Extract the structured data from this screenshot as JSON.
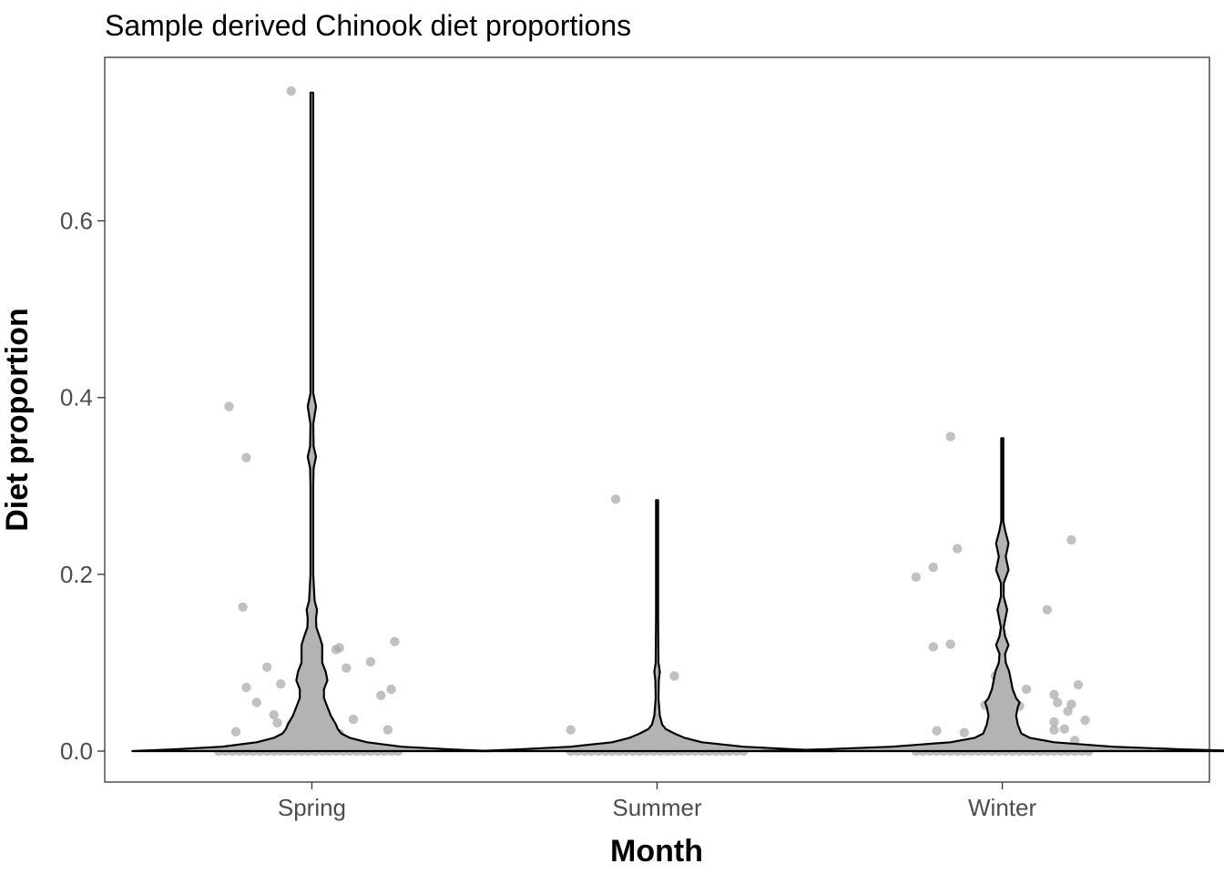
{
  "chart_data": {
    "type": "violin",
    "title": "Sample derived Chinook diet proportions",
    "xlabel": "Month",
    "ylabel": "Diet proportion",
    "categories": [
      "Spring",
      "Summer",
      "Winter"
    ],
    "y_ticks": [
      0.0,
      0.2,
      0.4,
      0.6
    ],
    "y_tick_labels": [
      "0.0",
      "0.2",
      "0.4",
      "0.6"
    ],
    "ylim": [
      -0.035,
      0.785
    ],
    "grid": false,
    "legend": "none",
    "colors": {
      "violin_fill": "#b3b3b3",
      "violin_stroke": "#000000",
      "point": "#a6a6a6",
      "frame": "#333333"
    },
    "violins": [
      {
        "category": "Spring",
        "profile": [
          [
            0,
            0.52
          ],
          [
            0.002,
            0.4
          ],
          [
            0.005,
            0.26
          ],
          [
            0.01,
            0.16
          ],
          [
            0.015,
            0.11
          ],
          [
            0.02,
            0.085
          ],
          [
            0.025,
            0.075
          ],
          [
            0.03,
            0.07
          ],
          [
            0.04,
            0.055
          ],
          [
            0.05,
            0.045
          ],
          [
            0.06,
            0.035
          ],
          [
            0.07,
            0.035
          ],
          [
            0.08,
            0.045
          ],
          [
            0.09,
            0.04
          ],
          [
            0.1,
            0.03
          ],
          [
            0.11,
            0.03
          ],
          [
            0.12,
            0.03
          ],
          [
            0.13,
            0.022
          ],
          [
            0.14,
            0.013
          ],
          [
            0.15,
            0.012
          ],
          [
            0.16,
            0.015
          ],
          [
            0.17,
            0.008
          ],
          [
            0.2,
            0.004
          ],
          [
            0.25,
            0.004
          ],
          [
            0.3,
            0.004
          ],
          [
            0.32,
            0.005
          ],
          [
            0.333,
            0.012
          ],
          [
            0.345,
            0.005
          ],
          [
            0.37,
            0.004
          ],
          [
            0.39,
            0.012
          ],
          [
            0.405,
            0.004
          ],
          [
            0.45,
            0.004
          ],
          [
            0.6,
            0.004
          ],
          [
            0.745,
            0.004
          ]
        ]
      },
      {
        "category": "Summer",
        "profile": [
          [
            0,
            0.52
          ],
          [
            0.002,
            0.4
          ],
          [
            0.005,
            0.25
          ],
          [
            0.01,
            0.13
          ],
          [
            0.015,
            0.08
          ],
          [
            0.02,
            0.05
          ],
          [
            0.025,
            0.025
          ],
          [
            0.03,
            0.015
          ],
          [
            0.04,
            0.008
          ],
          [
            0.06,
            0.004
          ],
          [
            0.08,
            0.005
          ],
          [
            0.09,
            0.008
          ],
          [
            0.1,
            0.004
          ],
          [
            0.15,
            0.003
          ],
          [
            0.284,
            0.003
          ]
        ]
      },
      {
        "category": "Winter",
        "profile": [
          [
            0,
            0.7
          ],
          [
            0.002,
            0.52
          ],
          [
            0.005,
            0.32
          ],
          [
            0.01,
            0.15
          ],
          [
            0.015,
            0.08
          ],
          [
            0.02,
            0.055
          ],
          [
            0.03,
            0.045
          ],
          [
            0.04,
            0.04
          ],
          [
            0.05,
            0.045
          ],
          [
            0.055,
            0.05
          ],
          [
            0.06,
            0.04
          ],
          [
            0.07,
            0.03
          ],
          [
            0.08,
            0.025
          ],
          [
            0.09,
            0.02
          ],
          [
            0.1,
            0.01
          ],
          [
            0.11,
            0.008
          ],
          [
            0.12,
            0.018
          ],
          [
            0.13,
            0.008
          ],
          [
            0.14,
            0.004
          ],
          [
            0.16,
            0.014
          ],
          [
            0.175,
            0.004
          ],
          [
            0.19,
            0.004
          ],
          [
            0.205,
            0.018
          ],
          [
            0.22,
            0.01
          ],
          [
            0.235,
            0.018
          ],
          [
            0.25,
            0.008
          ],
          [
            0.26,
            0.003
          ],
          [
            0.3,
            0.003
          ],
          [
            0.354,
            0.003
          ]
        ]
      }
    ],
    "points": [
      {
        "category": "Spring",
        "dx": -0.06,
        "y": 0.747
      },
      {
        "category": "Spring",
        "dx": -0.24,
        "y": 0.39
      },
      {
        "category": "Spring",
        "dx": -0.19,
        "y": 0.332
      },
      {
        "category": "Spring",
        "dx": -0.2,
        "y": 0.163
      },
      {
        "category": "Spring",
        "dx": 0.07,
        "y": 0.115
      },
      {
        "category": "Spring",
        "dx": 0.08,
        "y": 0.117
      },
      {
        "category": "Spring",
        "dx": 0.24,
        "y": 0.124
      },
      {
        "category": "Spring",
        "dx": -0.13,
        "y": 0.095
      },
      {
        "category": "Spring",
        "dx": 0.1,
        "y": 0.094
      },
      {
        "category": "Spring",
        "dx": 0.17,
        "y": 0.101
      },
      {
        "category": "Spring",
        "dx": -0.19,
        "y": 0.072
      },
      {
        "category": "Spring",
        "dx": -0.09,
        "y": 0.076
      },
      {
        "category": "Spring",
        "dx": 0.23,
        "y": 0.07
      },
      {
        "category": "Spring",
        "dx": 0.2,
        "y": 0.063
      },
      {
        "category": "Spring",
        "dx": -0.16,
        "y": 0.055
      },
      {
        "category": "Spring",
        "dx": -0.11,
        "y": 0.041
      },
      {
        "category": "Spring",
        "dx": -0.04,
        "y": 0.043
      },
      {
        "category": "Spring",
        "dx": -0.1,
        "y": 0.032
      },
      {
        "category": "Spring",
        "dx": -0.06,
        "y": 0.03
      },
      {
        "category": "Spring",
        "dx": 0.12,
        "y": 0.036
      },
      {
        "category": "Spring",
        "dx": -0.22,
        "y": 0.022
      },
      {
        "category": "Spring",
        "dx": 0.08,
        "y": 0.02
      },
      {
        "category": "Spring",
        "dx": 0.22,
        "y": 0.024
      },
      {
        "category": "Summer",
        "dx": -0.12,
        "y": 0.285
      },
      {
        "category": "Summer",
        "dx": 0.05,
        "y": 0.085
      },
      {
        "category": "Summer",
        "dx": -0.25,
        "y": 0.024
      },
      {
        "category": "Winter",
        "dx": -0.15,
        "y": 0.356
      },
      {
        "category": "Winter",
        "dx": 0.2,
        "y": 0.239
      },
      {
        "category": "Winter",
        "dx": -0.13,
        "y": 0.229
      },
      {
        "category": "Winter",
        "dx": -0.2,
        "y": 0.208
      },
      {
        "category": "Winter",
        "dx": -0.25,
        "y": 0.197
      },
      {
        "category": "Winter",
        "dx": 0.13,
        "y": 0.16
      },
      {
        "category": "Winter",
        "dx": -0.15,
        "y": 0.121
      },
      {
        "category": "Winter",
        "dx": -0.2,
        "y": 0.118
      },
      {
        "category": "Winter",
        "dx": -0.02,
        "y": 0.085
      },
      {
        "category": "Winter",
        "dx": 0.22,
        "y": 0.075
      },
      {
        "category": "Winter",
        "dx": 0.07,
        "y": 0.07
      },
      {
        "category": "Winter",
        "dx": 0.15,
        "y": 0.064
      },
      {
        "category": "Winter",
        "dx": 0.16,
        "y": 0.055
      },
      {
        "category": "Winter",
        "dx": 0.2,
        "y": 0.053
      },
      {
        "category": "Winter",
        "dx": -0.05,
        "y": 0.052
      },
      {
        "category": "Winter",
        "dx": 0.05,
        "y": 0.051
      },
      {
        "category": "Winter",
        "dx": 0.19,
        "y": 0.045
      },
      {
        "category": "Winter",
        "dx": 0.24,
        "y": 0.035
      },
      {
        "category": "Winter",
        "dx": 0.15,
        "y": 0.033
      },
      {
        "category": "Winter",
        "dx": -0.19,
        "y": 0.023
      },
      {
        "category": "Winter",
        "dx": -0.11,
        "y": 0.021
      },
      {
        "category": "Winter",
        "dx": 0.15,
        "y": 0.024
      },
      {
        "category": "Winter",
        "dx": 0.18,
        "y": 0.025
      },
      {
        "category": "Winter",
        "dx": 0.21,
        "y": 0.012
      }
    ],
    "zero_points": {
      "Spring": [
        -0.27,
        -0.25,
        -0.23,
        -0.21,
        -0.19,
        -0.17,
        -0.15,
        -0.13,
        -0.11,
        -0.09,
        -0.07,
        -0.05,
        -0.03,
        -0.01,
        0.01,
        0.03,
        0.05,
        0.07,
        0.09,
        0.11,
        0.13,
        0.15,
        0.17,
        0.19,
        0.21,
        0.23,
        0.25
      ],
      "Summer": [
        -0.25,
        -0.23,
        -0.21,
        -0.19,
        -0.17,
        -0.15,
        -0.13,
        -0.11,
        -0.09,
        -0.07,
        -0.05,
        -0.03,
        -0.01,
        0.01,
        0.03,
        0.05,
        0.07,
        0.09,
        0.11,
        0.13,
        0.15,
        0.17,
        0.19,
        0.21,
        0.23,
        0.25
      ],
      "Winter": [
        -0.25,
        -0.23,
        -0.21,
        -0.19,
        -0.17,
        -0.15,
        -0.13,
        -0.11,
        -0.09,
        -0.07,
        -0.05,
        -0.03,
        -0.01,
        0.01,
        0.03,
        0.05,
        0.07,
        0.09,
        0.11,
        0.13,
        0.15,
        0.17,
        0.19,
        0.21,
        0.23,
        0.25
      ]
    }
  }
}
